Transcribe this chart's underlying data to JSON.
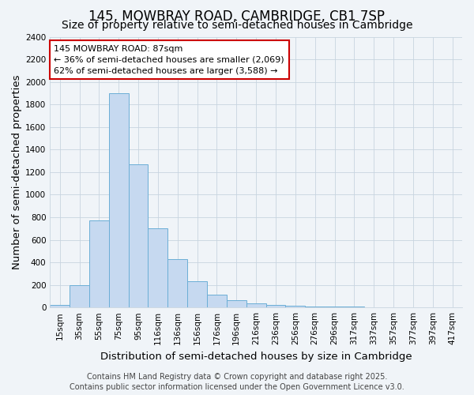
{
  "title": "145, MOWBRAY ROAD, CAMBRIDGE, CB1 7SP",
  "subtitle": "Size of property relative to semi-detached houses in Cambridge",
  "xlabel": "Distribution of semi-detached houses by size in Cambridge",
  "ylabel": "Number of semi-detached properties",
  "bar_labels": [
    "15sqm",
    "35sqm",
    "55sqm",
    "75sqm",
    "95sqm",
    "116sqm",
    "136sqm",
    "156sqm",
    "176sqm",
    "196sqm",
    "216sqm",
    "236sqm",
    "256sqm",
    "276sqm",
    "296sqm",
    "317sqm",
    "337sqm",
    "357sqm",
    "377sqm",
    "397sqm",
    "417sqm"
  ],
  "bar_values": [
    25,
    200,
    770,
    1900,
    1270,
    700,
    430,
    230,
    110,
    65,
    35,
    25,
    15,
    10,
    8,
    5,
    3,
    2,
    1,
    1,
    0
  ],
  "bar_color": "#c6d9f0",
  "bar_edge_color": "#6baed6",
  "annotation_title": "145 MOWBRAY ROAD: 87sqm",
  "annotation_line1": "← 36% of semi-detached houses are smaller (2,069)",
  "annotation_line2": "62% of semi-detached houses are larger (3,588) →",
  "annotation_box_facecolor": "#ffffff",
  "annotation_box_edgecolor": "#cc0000",
  "vertical_line_x": 3.5,
  "ylim": [
    0,
    2400
  ],
  "yticks": [
    0,
    200,
    400,
    600,
    800,
    1000,
    1200,
    1400,
    1600,
    1800,
    2000,
    2200,
    2400
  ],
  "background_color": "#f0f4f8",
  "plot_bg_color": "#f0f4f8",
  "grid_color": "#c8d4e0",
  "footer_line1": "Contains HM Land Registry data © Crown copyright and database right 2025.",
  "footer_line2": "Contains public sector information licensed under the Open Government Licence v3.0.",
  "title_fontsize": 12,
  "subtitle_fontsize": 10,
  "axis_label_fontsize": 9.5,
  "tick_fontsize": 7.5,
  "footer_fontsize": 7,
  "annotation_fontsize": 8
}
